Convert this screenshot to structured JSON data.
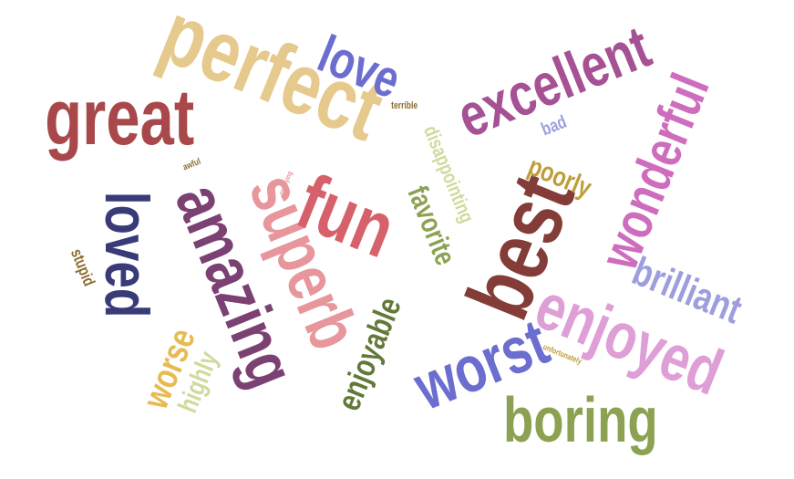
{
  "words": [
    {
      "text": "perfect",
      "color": "#e6c98c",
      "rotation": 22
    },
    {
      "text": "great",
      "color": "#a8484b",
      "rotation": 0
    },
    {
      "text": "love",
      "color": "#6b6ecf",
      "rotation": 22
    },
    {
      "text": "excellent",
      "color": "#a55194",
      "rotation": -22
    },
    {
      "text": "wonderful",
      "color": "#ce6dbd",
      "rotation": -68
    },
    {
      "text": "loved",
      "color": "#393b79",
      "rotation": 90
    },
    {
      "text": "amazing",
      "color": "#7b4173",
      "rotation": 68
    },
    {
      "text": "superb",
      "color": "#e7969c",
      "rotation": 68
    },
    {
      "text": "fun",
      "color": "#d6616b",
      "rotation": 22
    },
    {
      "text": "best",
      "color": "#843c39",
      "rotation": -68
    },
    {
      "text": "enjoyed",
      "color": "#de9ed6",
      "rotation": 22
    },
    {
      "text": "brilliant",
      "color": "#9c9ede",
      "rotation": 22
    },
    {
      "text": "worst",
      "color": "#6b6ecf",
      "rotation": -22
    },
    {
      "text": "boring",
      "color": "#8ca252",
      "rotation": 0
    },
    {
      "text": "enjoyable",
      "color": "#637939",
      "rotation": -68
    },
    {
      "text": "worse",
      "color": "#e7ba52",
      "rotation": -68
    },
    {
      "text": "highly",
      "color": "#cedb9c",
      "rotation": -68
    },
    {
      "text": "favorite",
      "color": "#8ca252",
      "rotation": 68
    },
    {
      "text": "disappointing",
      "color": "#cedb9c",
      "rotation": 68
    },
    {
      "text": "poorly",
      "color": "#bd9e39",
      "rotation": 22
    },
    {
      "text": "bad",
      "color": "#9c9ede",
      "rotation": -22
    },
    {
      "text": "stupid",
      "color": "#8c6d31",
      "rotation": 68
    },
    {
      "text": "terrible",
      "color": "#8c6d31",
      "rotation": 0
    },
    {
      "text": "awful",
      "color": "#8c6d31",
      "rotation": -22
    },
    {
      "text": "annoying",
      "color": "#e7969c",
      "rotation": -68
    },
    {
      "text": "unfortunately",
      "color": "#bd9e39",
      "rotation": 22
    }
  ]
}
